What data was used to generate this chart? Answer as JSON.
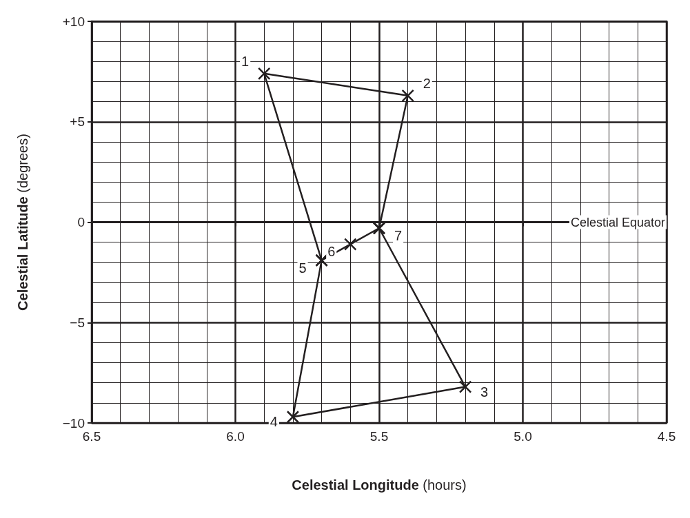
{
  "chart_data": {
    "type": "line",
    "xlabel": "Celestial Longitude (hours)",
    "ylabel": "Celestial Latitude (degrees)",
    "x": [
      5.7,
      5.9,
      5.4,
      5.5,
      5.6,
      5.7,
      5.8,
      5.2,
      5.5
    ],
    "series": [
      {
        "color": "#231f20",
        "values": [
          -1.9,
          7.4,
          6.3,
          -0.3,
          -1.1,
          -1.9,
          -9.7,
          -8.2,
          -0.3
        ]
      }
    ],
    "marker": "cross",
    "line_style": "solid",
    "xlim": [
      6.5,
      4.5
    ],
    "xticks": [
      6.5,
      {
        "value": 6,
        "label": "6.0"
      },
      5.5,
      {
        "value": 5,
        "label": "5.0"
      },
      4.5
    ],
    "ylim": [
      -10,
      10
    ],
    "yticks": [
      {
        "value": -10,
        "label": "−10"
      },
      {
        "value": -5,
        "label": "−5"
      },
      0,
      {
        "value": 5,
        "label": "+5"
      },
      {
        "value": 10,
        "label": "+10"
      }
    ],
    "grid": true,
    "ref_lines": [
      {
        "axis": "y",
        "value": 0,
        "label": "Celestial Equator"
      }
    ],
    "annotations": [
      {
        "text": "1",
        "x": 5.9,
        "y": 7.4
      },
      {
        "text": "2",
        "x": 5.4,
        "y": 6.3
      },
      {
        "text": "3",
        "x": 5.2,
        "y": -8.2
      },
      {
        "text": "4",
        "x": 5.8,
        "y": -9.7
      },
      {
        "text": "5",
        "x": 5.7,
        "y": -1.9
      },
      {
        "text": "6",
        "x": 5.6,
        "y": -1.1
      },
      {
        "text": "7",
        "x": 5.5,
        "y": -0.3
      }
    ]
  }
}
